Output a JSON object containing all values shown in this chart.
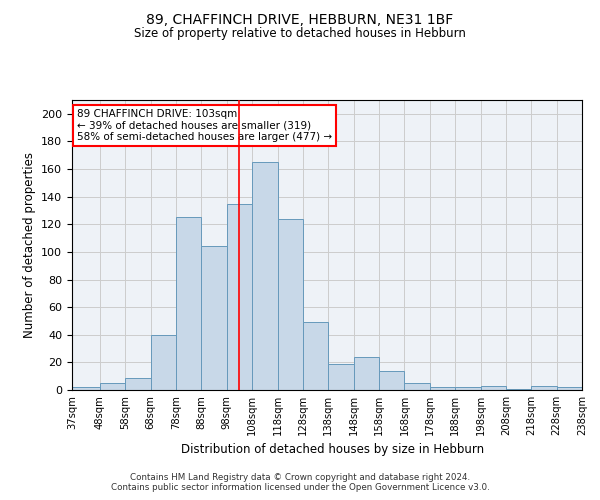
{
  "title1": "89, CHAFFINCH DRIVE, HEBBURN, NE31 1BF",
  "title2": "Size of property relative to detached houses in Hebburn",
  "xlabel": "Distribution of detached houses by size in Hebburn",
  "ylabel": "Number of detached properties",
  "bin_labels": [
    "37sqm",
    "48sqm",
    "58sqm",
    "68sqm",
    "78sqm",
    "88sqm",
    "98sqm",
    "108sqm",
    "118sqm",
    "128sqm",
    "138sqm",
    "148sqm",
    "158sqm",
    "168sqm",
    "178sqm",
    "188sqm",
    "198sqm",
    "208sqm",
    "218sqm",
    "228sqm",
    "238sqm"
  ],
  "bin_edges": [
    37,
    48,
    58,
    68,
    78,
    88,
    98,
    108,
    118,
    128,
    138,
    148,
    158,
    168,
    178,
    188,
    198,
    208,
    218,
    228,
    238
  ],
  "bar_heights": [
    2,
    5,
    9,
    40,
    125,
    104,
    135,
    165,
    124,
    49,
    19,
    24,
    14,
    5,
    2,
    2,
    3,
    1,
    3,
    2
  ],
  "bar_color": "#c8d8e8",
  "bar_edge_color": "#6699bb",
  "red_line_x": 103,
  "annotation_line1": "89 CHAFFINCH DRIVE: 103sqm",
  "annotation_line2": "← 39% of detached houses are smaller (319)",
  "annotation_line3": "58% of semi-detached houses are larger (477) →",
  "annotation_box_color": "white",
  "annotation_box_edge_color": "red",
  "footer_line1": "Contains HM Land Registry data © Crown copyright and database right 2024.",
  "footer_line2": "Contains public sector information licensed under the Open Government Licence v3.0.",
  "ylim": [
    0,
    210
  ],
  "yticks": [
    0,
    20,
    40,
    60,
    80,
    100,
    120,
    140,
    160,
    180,
    200
  ],
  "grid_color": "#cccccc",
  "background_color": "#eef2f7"
}
